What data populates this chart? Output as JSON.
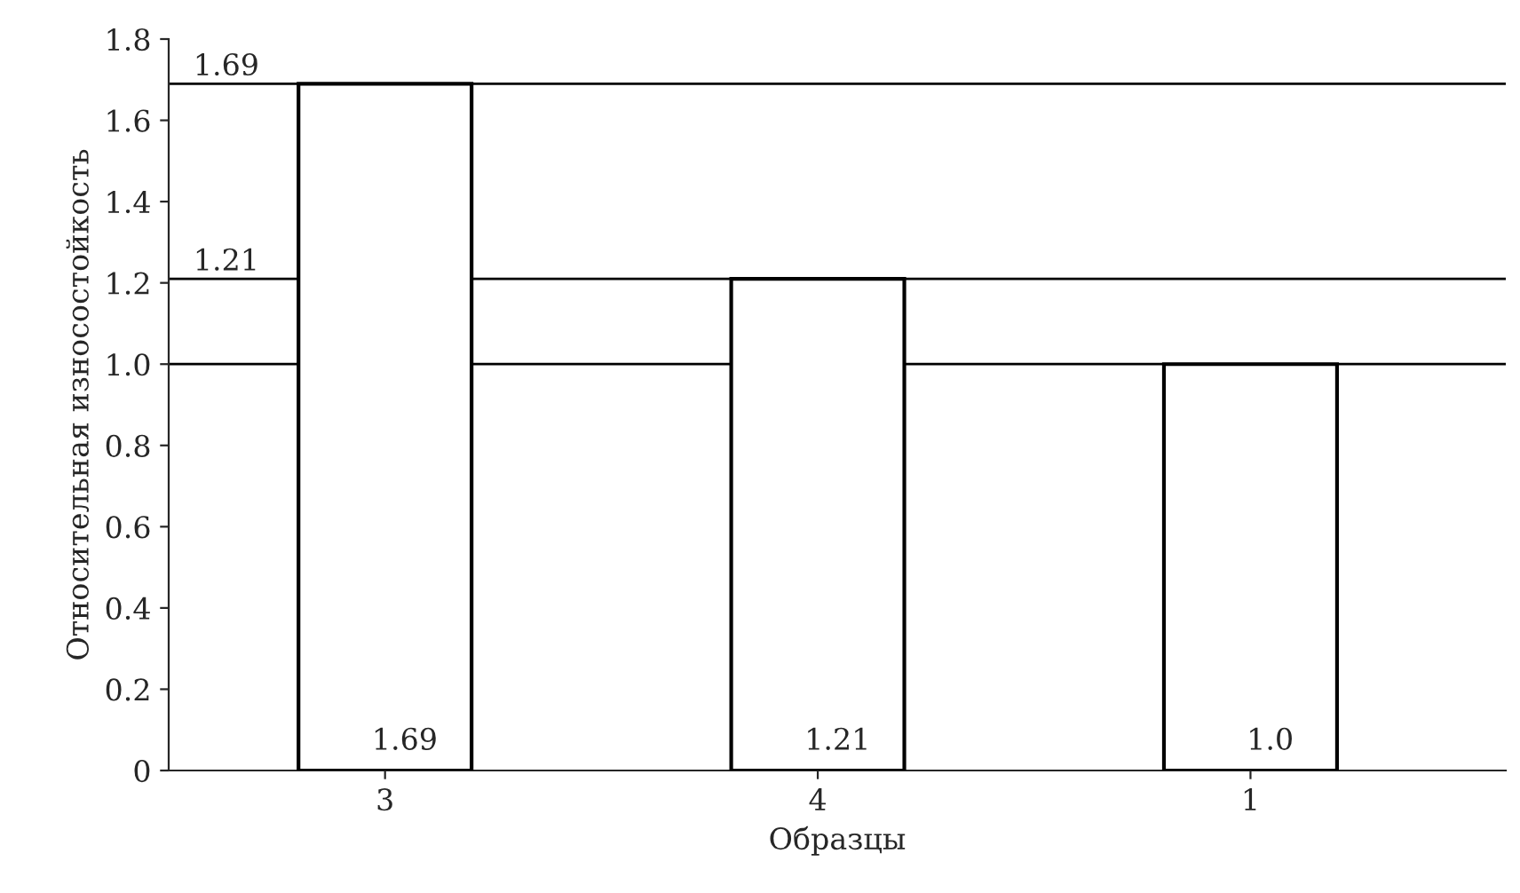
{
  "chart_data": {
    "type": "bar",
    "xlabel": "Образцы",
    "ylabel": "Относительная износостойкость",
    "categories": [
      "3",
      "4",
      "1"
    ],
    "values": [
      1.69,
      1.21,
      1.0
    ],
    "value_labels": [
      "1.69",
      "1.21",
      "1.0"
    ],
    "color": "#ffffff",
    "ylim": [
      0,
      1.8
    ],
    "yticks": [
      0,
      0.2,
      0.4,
      0.6,
      0.8,
      {
        "value": 1.0,
        "label": "1.0"
      },
      1.2,
      1.4,
      1.6,
      1.8
    ],
    "ref_lines": [
      {
        "axis": "y",
        "value": 1.69,
        "label": "1.69",
        "color": "#000000"
      },
      {
        "axis": "y",
        "value": 1.21,
        "label": "1.21",
        "color": "#000000"
      },
      {
        "axis": "y",
        "value": 1.0,
        "label": null,
        "color": "#000000"
      }
    ],
    "grid": false,
    "legend": false
  }
}
